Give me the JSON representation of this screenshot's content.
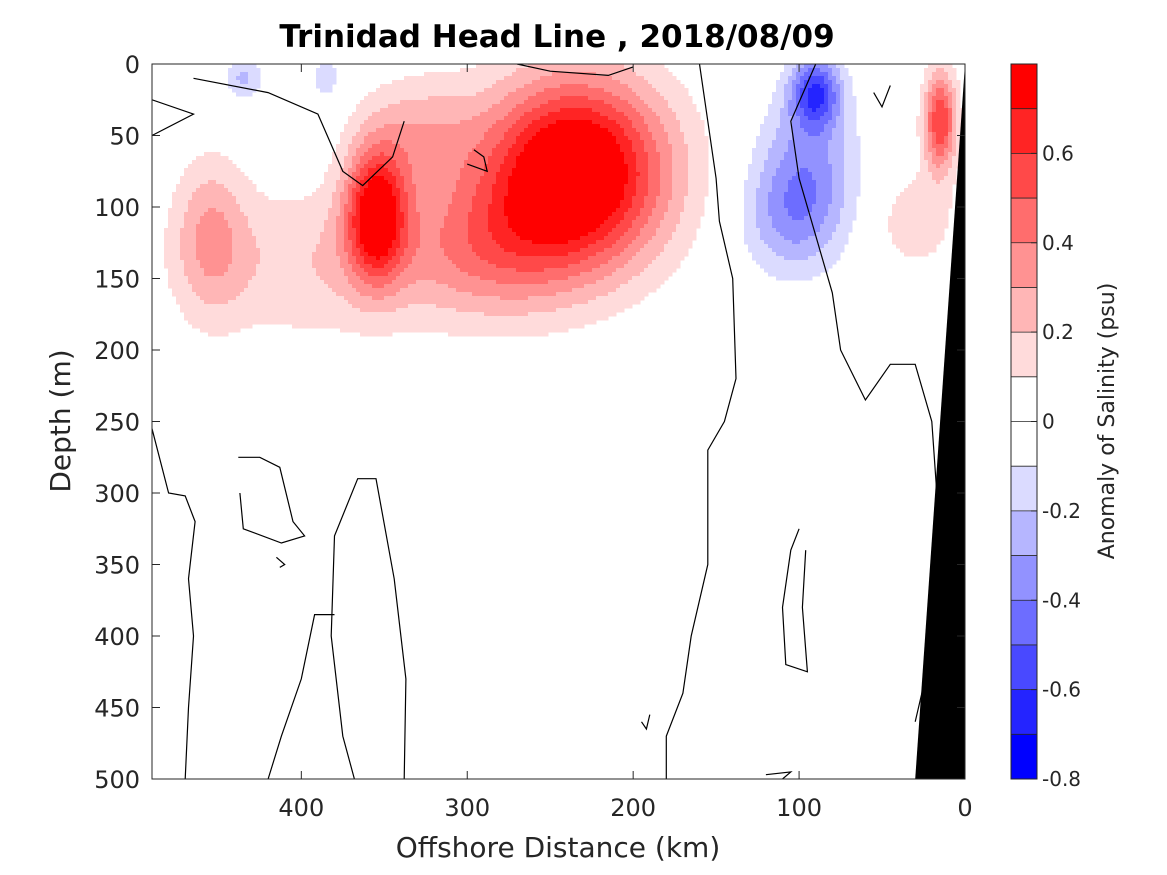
{
  "chart_data": {
    "type": "heatmap",
    "title": "Trinidad Head Line , 2018/08/09",
    "xlabel": "Offshore Distance (km)",
    "ylabel": "Depth (m)",
    "xlim": [
      490,
      0
    ],
    "ylim": [
      0,
      500
    ],
    "x_reversed": true,
    "y_reversed": true,
    "xticks": [
      400,
      300,
      200,
      100,
      0
    ],
    "xtick_labels": [
      "400",
      "300",
      "200",
      "100",
      "0"
    ],
    "yticks": [
      0,
      50,
      100,
      150,
      200,
      250,
      300,
      350,
      400,
      450,
      500
    ],
    "ytick_labels": [
      "0",
      "50",
      "100",
      "150",
      "200",
      "250",
      "300",
      "350",
      "400",
      "450",
      "500"
    ],
    "colorbar": {
      "label": "Anomaly of Salinity (psu)",
      "min": -0.8,
      "max": 0.8,
      "step": 0.1,
      "ticks": [
        0.6,
        0.4,
        0.2,
        0,
        -0.2,
        -0.4,
        -0.6,
        -0.8
      ],
      "tick_labels": [
        "0.6",
        "0.4",
        "0.2",
        "0",
        "-0.2",
        "-0.4",
        "-0.6",
        "-0.8"
      ],
      "colormap": "blue-white-red",
      "color_low": "#0000ff",
      "color_zero": "#ffffff",
      "color_high": "#ff0000"
    },
    "features": [
      {
        "name": "positive anomaly core",
        "distance_km": 235,
        "depth_m": 75,
        "value": 0.8
      },
      {
        "name": "positive anomaly core",
        "distance_km": 355,
        "depth_m": 105,
        "value": 0.7
      },
      {
        "name": "positive anomaly",
        "distance_km": 455,
        "depth_m": 120,
        "value": 0.25
      },
      {
        "name": "positive anomaly",
        "distance_km": 15,
        "depth_m": 40,
        "value": 0.6
      },
      {
        "name": "negative anomaly core",
        "distance_km": 90,
        "depth_m": 20,
        "value": -0.5
      },
      {
        "name": "negative anomaly",
        "distance_km": 95,
        "depth_m": 100,
        "value": -0.25
      },
      {
        "name": "negative anomaly",
        "distance_km": 435,
        "depth_m": 10,
        "value": -0.2
      }
    ],
    "bathymetry_color": "#000000"
  }
}
